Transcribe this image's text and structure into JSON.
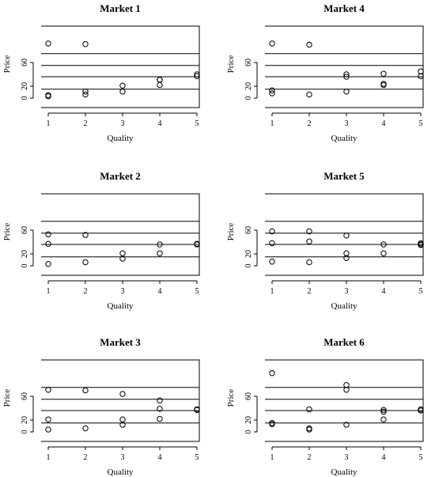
{
  "chart_data": [
    {
      "type": "scatter",
      "title": "Market 1",
      "xlabel": "Quality",
      "ylabel": "Price",
      "xlim": [
        1,
        5
      ],
      "ylim": [
        0,
        100
      ],
      "xticks": [
        1,
        2,
        3,
        4,
        5
      ],
      "yticks": [
        0,
        20,
        60
      ],
      "hlines": [
        15,
        36,
        55,
        75
      ],
      "x": [
        1,
        1,
        1,
        2,
        2,
        2,
        3,
        3,
        4,
        4,
        4,
        5,
        5
      ],
      "y": [
        92,
        3,
        5,
        91,
        6,
        11,
        21,
        11,
        31,
        31,
        22,
        40,
        37
      ]
    },
    {
      "type": "scatter",
      "title": "Market 4",
      "xlabel": "Quality",
      "ylabel": "Price",
      "xlim": [
        1,
        5
      ],
      "ylim": [
        0,
        100
      ],
      "xticks": [
        1,
        2,
        3,
        4,
        5
      ],
      "yticks": [
        0,
        20,
        60
      ],
      "hlines": [
        15,
        36,
        55,
        75
      ],
      "x": [
        1,
        1,
        1,
        2,
        2,
        3,
        3,
        3,
        4,
        4,
        4,
        5,
        5
      ],
      "y": [
        92,
        13,
        8,
        90,
        6,
        40,
        36,
        11,
        41,
        24,
        22,
        45,
        37
      ]
    },
    {
      "type": "scatter",
      "title": "Market 2",
      "xlabel": "Quality",
      "ylabel": "Price",
      "xlim": [
        1,
        5
      ],
      "ylim": [
        0,
        100
      ],
      "xticks": [
        1,
        2,
        3,
        4,
        5
      ],
      "yticks": [
        0,
        20,
        60
      ],
      "hlines": [
        15,
        36,
        55,
        75
      ],
      "x": [
        1,
        1,
        1,
        2,
        2,
        3,
        3,
        4,
        4,
        5,
        5
      ],
      "y": [
        53,
        37,
        3,
        52,
        6,
        21,
        12,
        36,
        21,
        37,
        36
      ]
    },
    {
      "type": "scatter",
      "title": "Market 5",
      "xlabel": "Quality",
      "ylabel": "Price",
      "xlim": [
        1,
        5
      ],
      "ylim": [
        0,
        100
      ],
      "xticks": [
        1,
        2,
        3,
        4,
        5
      ],
      "yticks": [
        0,
        20,
        60
      ],
      "hlines": [
        15,
        36,
        55,
        75
      ],
      "x": [
        1,
        1,
        1,
        2,
        2,
        2,
        3,
        3,
        3,
        4,
        4,
        5,
        5,
        5
      ],
      "y": [
        58,
        38,
        7,
        58,
        41,
        6,
        51,
        21,
        13,
        36,
        21,
        38,
        36,
        35
      ]
    },
    {
      "type": "scatter",
      "title": "Market 3",
      "xlabel": "Quality",
      "ylabel": "Price",
      "xlim": [
        1,
        5
      ],
      "ylim": [
        0,
        100
      ],
      "xticks": [
        1,
        2,
        3,
        4,
        5
      ],
      "yticks": [
        0,
        20,
        60
      ],
      "hlines": [
        15,
        36,
        55,
        75
      ],
      "x": [
        1,
        1,
        1,
        2,
        2,
        3,
        3,
        3,
        4,
        4,
        4,
        5,
        5
      ],
      "y": [
        71,
        21,
        4,
        70,
        6,
        64,
        21,
        12,
        53,
        39,
        22,
        38,
        37
      ]
    },
    {
      "type": "scatter",
      "title": "Market 6",
      "xlabel": "Quality",
      "ylabel": "Price",
      "xlim": [
        1,
        5
      ],
      "ylim": [
        0,
        100
      ],
      "xticks": [
        1,
        2,
        3,
        4,
        5
      ],
      "yticks": [
        0,
        20,
        60
      ],
      "hlines": [
        15,
        36,
        55,
        75
      ],
      "x": [
        1,
        1,
        1,
        2,
        2,
        2,
        3,
        3,
        3,
        4,
        4,
        4,
        5,
        5
      ],
      "y": [
        99,
        15,
        13,
        38,
        6,
        4,
        79,
        71,
        12,
        37,
        34,
        21,
        38,
        36
      ]
    }
  ]
}
